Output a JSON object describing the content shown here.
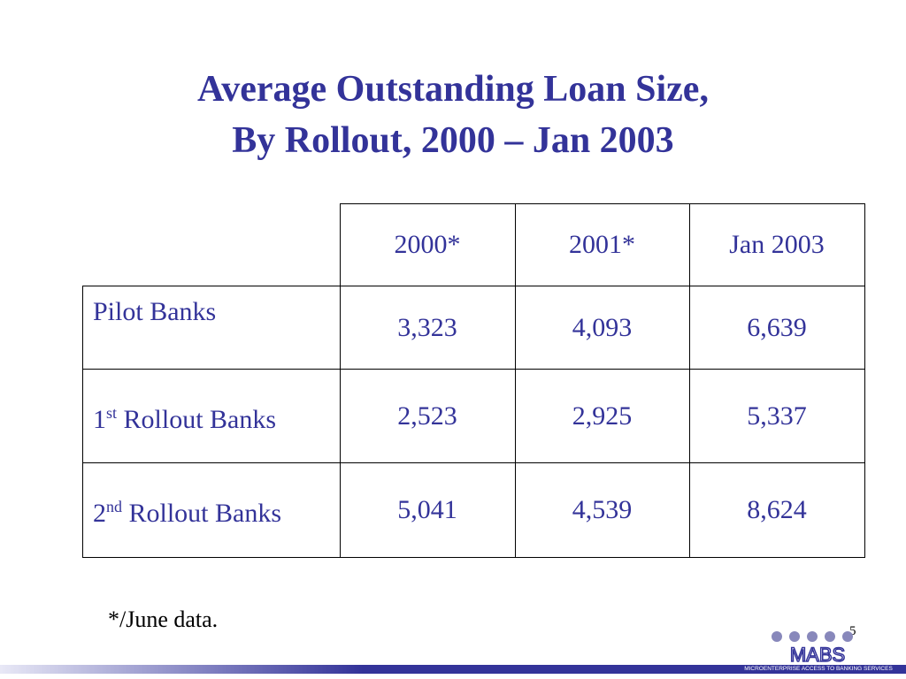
{
  "header": {
    "title_lines": [
      "Average Outstanding Loan Size,",
      "By Rollout, 2000 – Jan 2003"
    ]
  },
  "table": {
    "columns": [
      "2000*",
      "2001*",
      "Jan 2003"
    ],
    "rows": [
      {
        "label": {
          "num": "Pilot Banks"
        },
        "cells": [
          "3,323",
          "4,093",
          "6,639"
        ]
      },
      {
        "label": {
          "num": "1",
          "sup": "st",
          "text": " Rollout Banks"
        },
        "cells": [
          "2,523",
          "2,925",
          "5,337"
        ]
      },
      {
        "label": {
          "num": "2",
          "sup": "nd",
          "text": " Rollout Banks"
        },
        "cells": [
          "5,041",
          "4,539",
          "8,624"
        ]
      }
    ]
  },
  "footnote": "*/June data.",
  "page_number": "5",
  "logo": {
    "name": "MABS",
    "tagline": "MICROENTERPRISE ACCESS TO BANKING SERVICES"
  }
}
